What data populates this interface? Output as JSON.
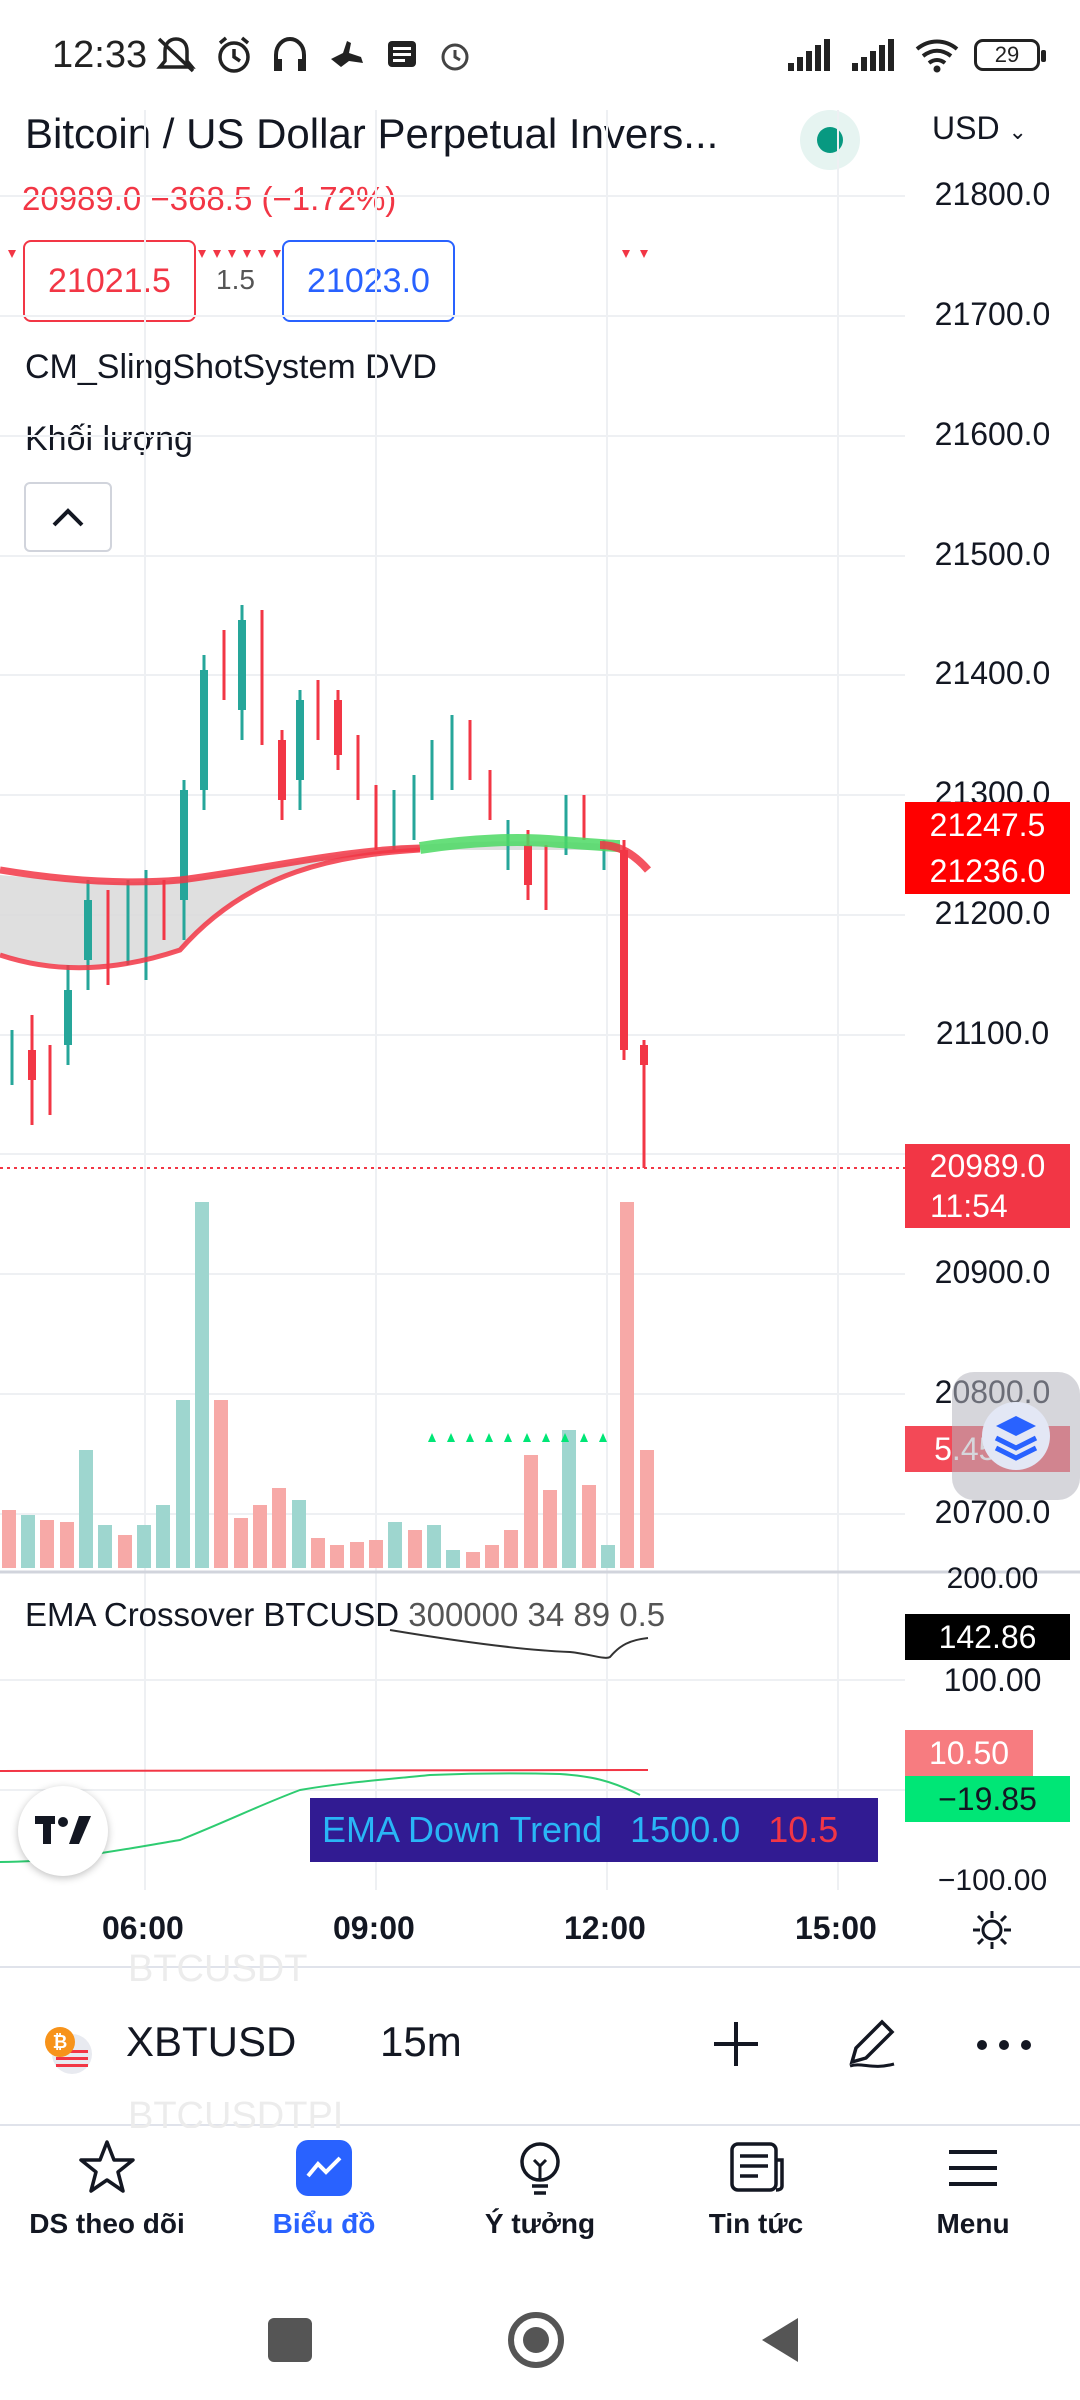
{
  "status_bar": {
    "time": "12:33",
    "battery": "29"
  },
  "header": {
    "symbol_title": "Bitcoin / US Dollar Perpetual Invers...",
    "currency": "USD",
    "price_change": "20989.0  −368.5 (−1.72%)",
    "bid": "21021.5",
    "spread": "1.5",
    "ask": "21023.0"
  },
  "indicators": {
    "slingshot": "CM_SlingShotSystem DVD",
    "volume": "Khối lượng",
    "ema_name": "EMA Crossover BTCUSD",
    "ema_params": "300000 34 89 0.5",
    "trend_label": "EMA Down Trend",
    "trend_value1": "1500.0",
    "trend_value2": "10.5"
  },
  "price_scale": [
    "21800.0",
    "21700.0",
    "21600.0",
    "21500.0",
    "21400.0",
    "21300.0",
    "21200.0",
    "21100.0",
    "20900.0",
    "20800.0",
    "20700.0"
  ],
  "price_tags": {
    "ema_fast": "21247.5",
    "ema_slow": "21236.0",
    "last_price": "20989.0",
    "countdown": "11:54",
    "volume": "5.451M"
  },
  "oscillator_scale": {
    "top": "200.00",
    "mid": "100.00",
    "bottom": "−100.00"
  },
  "oscillator_tags": {
    "black": "142.86",
    "red": "10.50",
    "green": "−19.85"
  },
  "time_axis": [
    "06:00",
    "09:00",
    "12:00",
    "15:00"
  ],
  "toolbar": {
    "ticker": "XBTUSD",
    "interval": "15m",
    "ghost_above": "BTCUSDT",
    "ghost_below": "BTCUSDTPI"
  },
  "bottom_nav": [
    {
      "label": "DS theo dõi",
      "icon": "star-icon"
    },
    {
      "label": "Biểu đồ",
      "icon": "chart-icon"
    },
    {
      "label": "Ý tưởng",
      "icon": "lightbulb-icon"
    },
    {
      "label": "Tin tức",
      "icon": "newspaper-icon"
    },
    {
      "label": "Menu",
      "icon": "hamburger-icon"
    }
  ],
  "colors": {
    "up": "#26a69a",
    "down": "#f23645",
    "accent": "#2962ff"
  }
}
